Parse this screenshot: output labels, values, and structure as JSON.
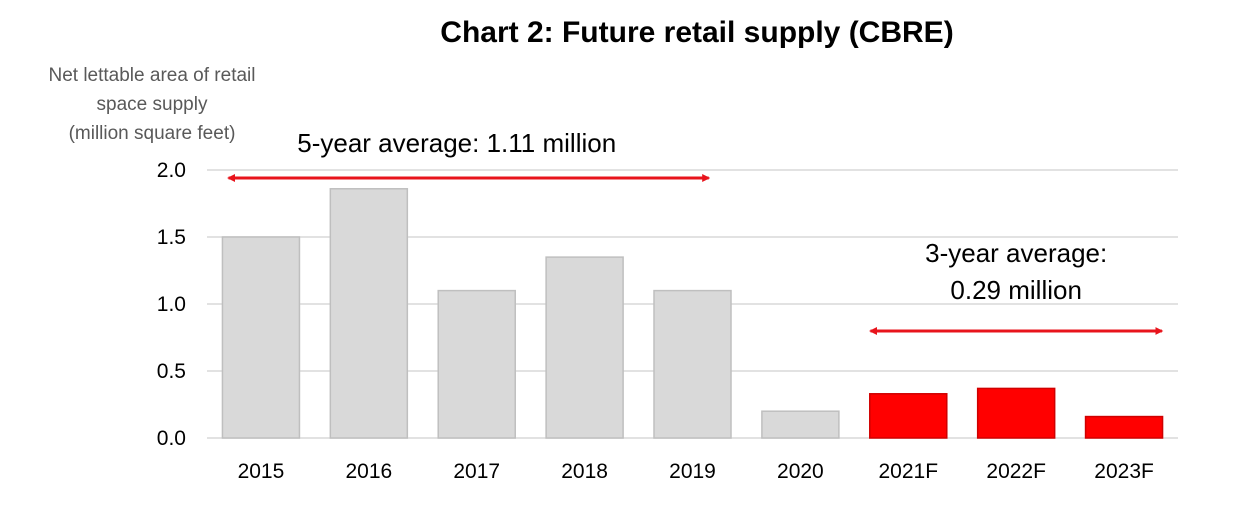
{
  "chart_data": {
    "type": "bar",
    "title": "Chart 2: Future retail supply (CBRE)",
    "ylabel_lines": [
      "Net lettable area of retail",
      "space supply",
      "(million square feet)"
    ],
    "xlabel": "",
    "categories": [
      "2015",
      "2016",
      "2017",
      "2018",
      "2019",
      "2020",
      "2021F",
      "2022F",
      "2023F"
    ],
    "values": [
      1.5,
      1.86,
      1.1,
      1.35,
      1.1,
      0.2,
      0.33,
      0.37,
      0.16
    ],
    "bar_colors": [
      "#d9d9d9",
      "#d9d9d9",
      "#d9d9d9",
      "#d9d9d9",
      "#d9d9d9",
      "#d9d9d9",
      "#ff0000",
      "#ff0000",
      "#ff0000"
    ],
    "ylim": [
      0,
      2.0
    ],
    "yticks": [
      "0.0",
      "0.5",
      "1.0",
      "1.5",
      "2.0"
    ],
    "grid": true,
    "annotations": [
      {
        "lines": [
          "5-year average: 1.11 million"
        ],
        "span": [
          "2015",
          "2019"
        ],
        "arrow_color": "#e8141c"
      },
      {
        "lines": [
          "3-year average:",
          "0.29 million"
        ],
        "span": [
          "2021F",
          "2023F"
        ],
        "arrow_color": "#e8141c"
      }
    ]
  }
}
